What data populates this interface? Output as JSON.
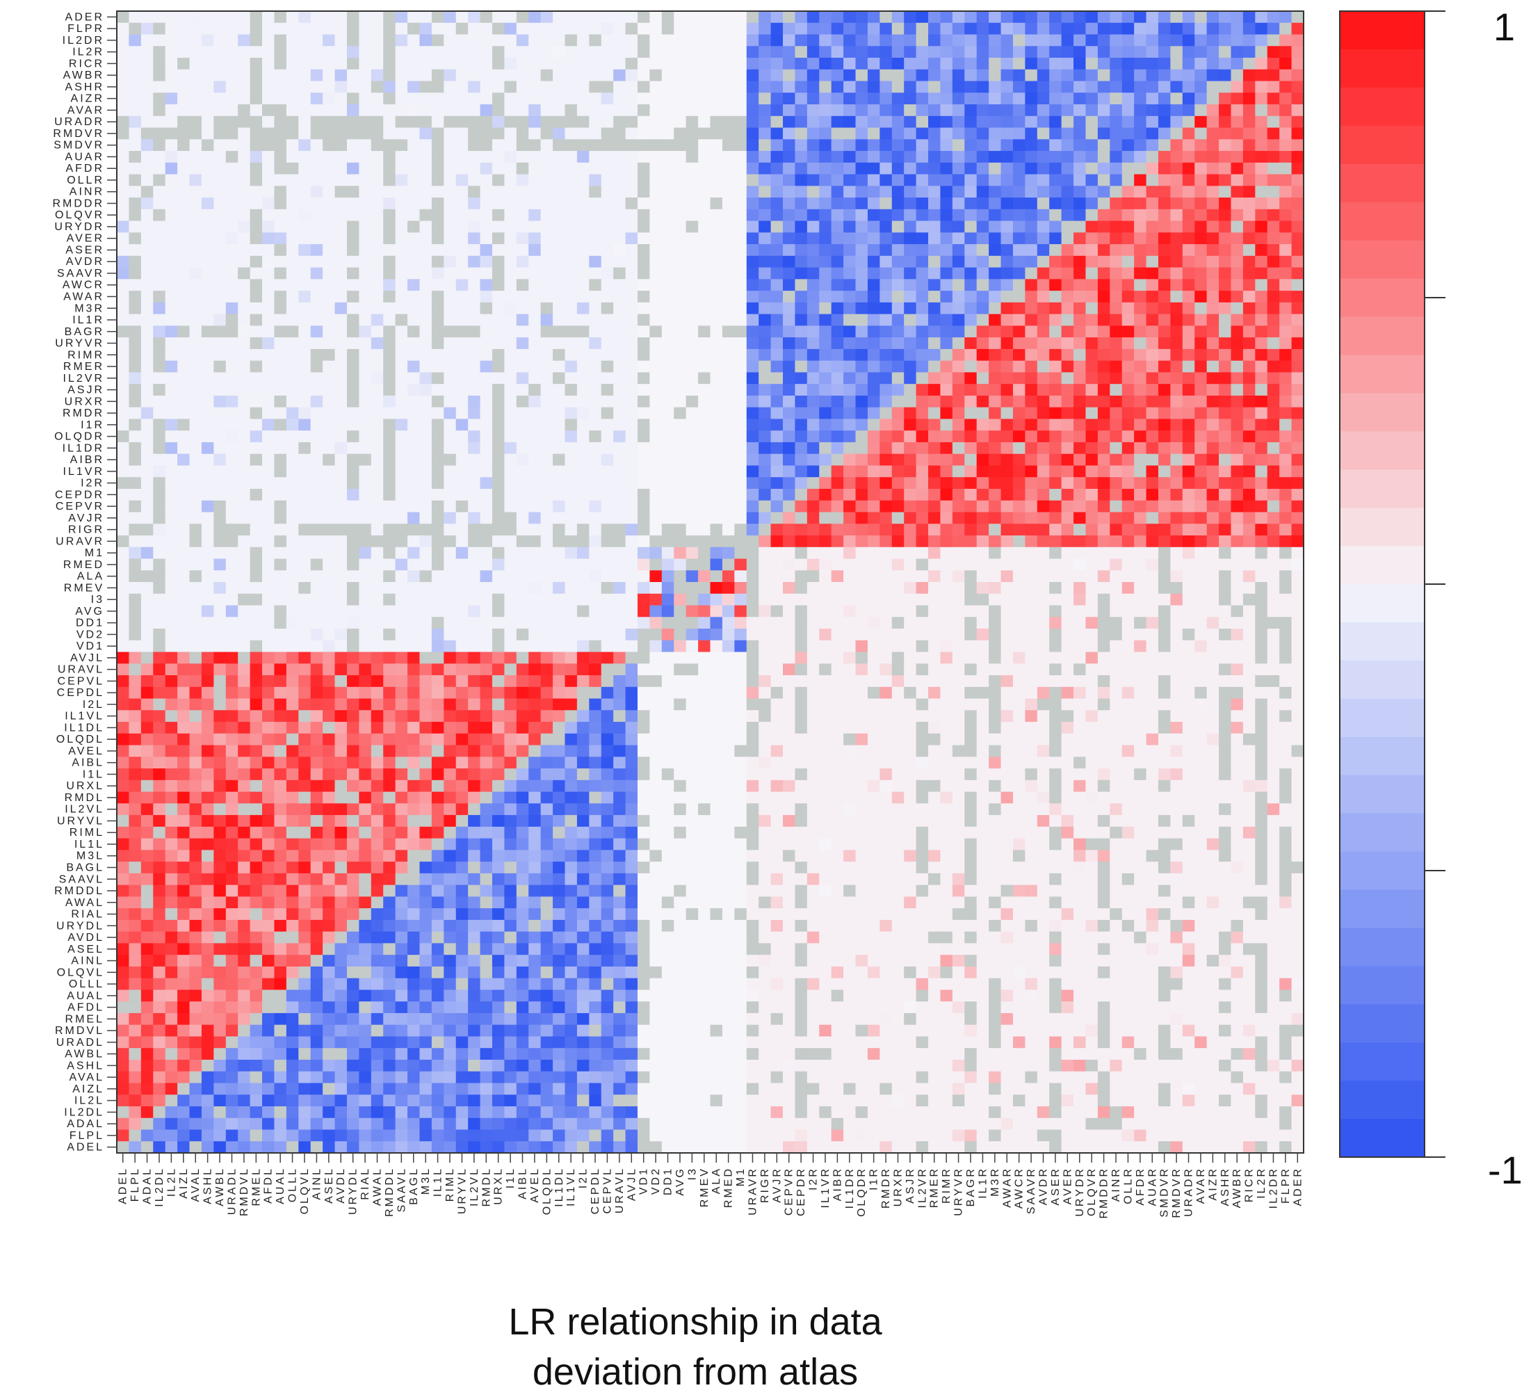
{
  "chart_data": {
    "type": "heatmap",
    "title": "LR relationship in data deviation from atlas",
    "caption_line1": "LR relationship in data",
    "caption_line2": "deviation from atlas",
    "colorbar": {
      "min": -1,
      "max": 1,
      "min_label": "-1",
      "max_label": "1",
      "ticks": [
        -1,
        -0.5,
        0,
        0.5,
        1
      ]
    },
    "colors": {
      "negative": "#2c52f0",
      "positive": "#ff0f12",
      "neutral": "#f6f5fa",
      "missing": "#c5cbc8"
    },
    "row_labels_top_to_bottom": [
      "ADER",
      "FLPR",
      "IL2DR",
      "IL2R",
      "RICR",
      "AWBR",
      "ASHR",
      "AIZR",
      "AVAR",
      "URADR",
      "RMDVR",
      "SMDVR",
      "AUAR",
      "AFDR",
      "OLLR",
      "AINR",
      "RMDDR",
      "OLQVR",
      "URYDR",
      "AVER",
      "ASER",
      "AVDR",
      "SAAVR",
      "AWCR",
      "AWAR",
      "M3R",
      "IL1R",
      "BAGR",
      "URYVR",
      "RIMR",
      "RMER",
      "IL2VR",
      "ASJR",
      "URXR",
      "RMDR",
      "I1R",
      "OLQDR",
      "IL1DR",
      "AIBR",
      "IL1VR",
      "I2R",
      "CEPDR",
      "CEPVR",
      "AVJR",
      "RIGR",
      "URAVR",
      "M1",
      "RMED",
      "ALA",
      "RMEV",
      "I3",
      "AVG",
      "DD1",
      "VD2",
      "VD1",
      "AVJL",
      "URAVL",
      "CEPVL",
      "CEPDL",
      "I2L",
      "IL1VL",
      "IL1DL",
      "OLQDL",
      "AVEL",
      "AIBL",
      "I1L",
      "URXL",
      "RMDL",
      "IL2VL",
      "URYVL",
      "RIML",
      "IL1L",
      "M3L",
      "BAGL",
      "SAAVL",
      "RMDDL",
      "AWAL",
      "RIAL",
      "URYDL",
      "AVDL",
      "ASEL",
      "AINL",
      "OLQVL",
      "OLLL",
      "AUAL",
      "AFDL",
      "RMEL",
      "RMDVL",
      "URADL",
      "AWBL",
      "ASHL",
      "AVAL",
      "AIZL",
      "IL2L",
      "IL2DL",
      "ADAL",
      "FLPL",
      "ADEL"
    ],
    "column_labels_left_to_right": [
      "ADEL",
      "FLPL",
      "ADAL",
      "IL2DL",
      "IL2L",
      "AIZL",
      "AVAL",
      "ASHL",
      "AWBL",
      "URADL",
      "RMDVL",
      "RMEL",
      "AFDL",
      "AUAL",
      "OLLL",
      "OLQVL",
      "AINL",
      "ASEL",
      "AVDL",
      "URYDL",
      "RIAL",
      "AWAL",
      "RMDDL",
      "SAAVL",
      "BAGL",
      "M3L",
      "IL1L",
      "RIML",
      "URYVL",
      "IL2VL",
      "RMDL",
      "URXL",
      "I1L",
      "AIBL",
      "AVEL",
      "OLQDL",
      "IL1DL",
      "IL1VL",
      "I2L",
      "CEPDL",
      "CEPVL",
      "URAVL",
      "AVJL",
      "VD1",
      "VD2",
      "DD1",
      "AVG",
      "I3",
      "RMEV",
      "ALA",
      "RMED",
      "M1",
      "URAVR",
      "RIGR",
      "AVJR",
      "CEPVR",
      "CEPDR",
      "I2R",
      "IL1VR",
      "AIBR",
      "IL1DR",
      "OLQDR",
      "I1R",
      "RMDR",
      "URXR",
      "ASJR",
      "IL2VR",
      "RMER",
      "RIMR",
      "URYVR",
      "BAGR",
      "IL1R",
      "M3R",
      "AWAR",
      "AWCR",
      "SAAVR",
      "AVDR",
      "ASER",
      "AVER",
      "URYDR",
      "OLQVR",
      "RMDDR",
      "AINR",
      "OLLR",
      "AFDR",
      "AUAR",
      "SMDVR",
      "RMDVR",
      "URADR",
      "AVAR",
      "AIZR",
      "ASHR",
      "AWBR",
      "RICR",
      "IL2R",
      "IL2DR",
      "FLPR",
      "ADER"
    ],
    "blocks": [
      {
        "label": "left-left",
        "rows": [
          55,
          97
        ],
        "cols": [
          0,
          42
        ],
        "pattern": "lower-triangle positive, upper-triangle negative"
      },
      {
        "label": "right-right",
        "rows": [
          0,
          45
        ],
        "cols": [
          52,
          97
        ],
        "pattern": "upper-left negative, lower-right positive"
      },
      {
        "label": "mid",
        "rows": [
          46,
          54
        ],
        "cols": [
          43,
          51
        ],
        "pattern": "mixed"
      }
    ]
  }
}
